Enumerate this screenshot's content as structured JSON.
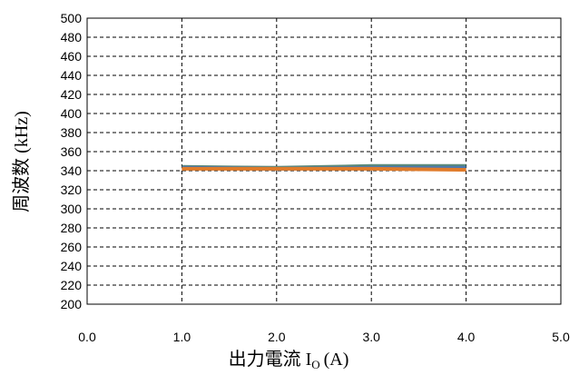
{
  "chart_data": {
    "type": "line",
    "xlabel": "出力電流 I",
    "xlabel_sub": "O",
    "xlabel_unit": "(A)",
    "ylabel": "周波数 (kHz)",
    "xlim": [
      0.0,
      5.0
    ],
    "ylim": [
      200,
      500
    ],
    "x_ticks": [
      "0.0",
      "1.0",
      "2.0",
      "3.0",
      "4.0",
      "5.0"
    ],
    "y_ticks": [
      "500",
      "480",
      "460",
      "440",
      "420",
      "400",
      "380",
      "360",
      "340",
      "320",
      "300",
      "280",
      "260",
      "240",
      "220",
      "200"
    ],
    "grid": true,
    "series": [
      {
        "color": "#5a8a7a",
        "x": [
          1.0,
          2.0,
          3.0,
          4.0
        ],
        "y": [
          344,
          343,
          345,
          345
        ]
      },
      {
        "color": "#4a78b0",
        "x": [
          1.0,
          2.0,
          3.0,
          4.0
        ],
        "y": [
          343,
          342,
          343,
          343
        ]
      },
      {
        "color": "#e07b2a",
        "x": [
          1.0,
          2.0,
          3.0,
          4.0
        ],
        "y": [
          342,
          342,
          342,
          341
        ]
      }
    ]
  }
}
